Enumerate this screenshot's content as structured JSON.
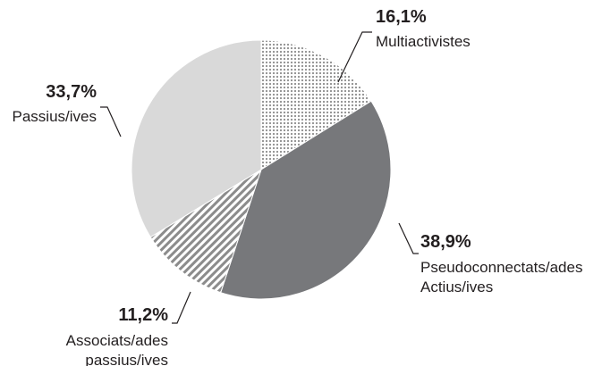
{
  "chart_data": {
    "type": "pie",
    "categories": [
      "Multiactivistes",
      "Pseudoconnectats/ades\nActius/ives",
      "Associats/ades\npassius/ives",
      "Passius/ives"
    ],
    "values": [
      16.1,
      38.9,
      11.2,
      33.7
    ],
    "value_labels": [
      "16,1%",
      "38,9%",
      "11,2%",
      "33,7%"
    ],
    "colors": [
      "#8c8c8c",
      "#77787b",
      "#8c8c8c",
      "#d9d9d9"
    ],
    "patterns": [
      "dots",
      null,
      "stripes",
      null
    ]
  }
}
